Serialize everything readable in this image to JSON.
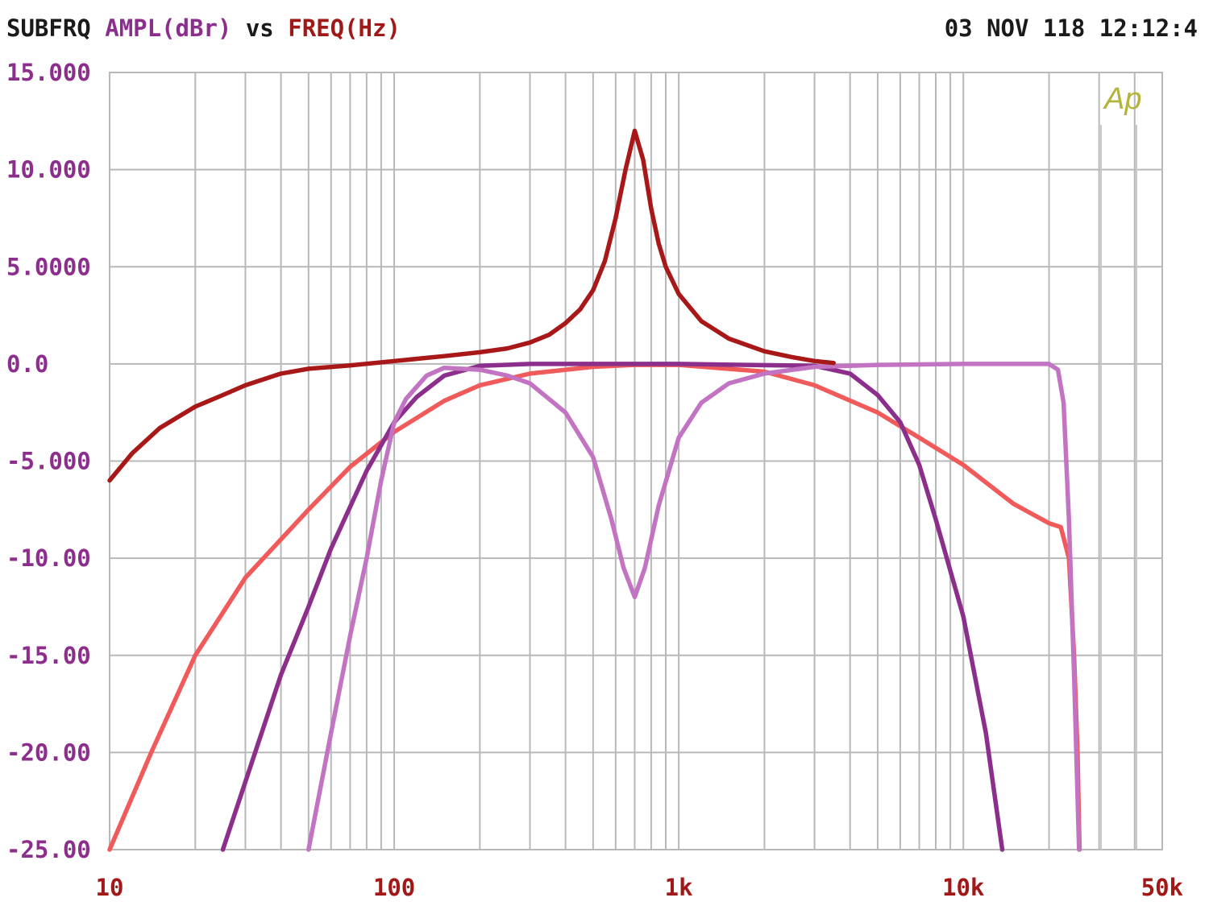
{
  "header": {
    "title": "SUBFRQ",
    "ylabel": "AMPL(dBr)",
    "vs": "vs",
    "xlabel": "FREQ(Hz)",
    "timestamp": "03 NOV 118 12:12:4"
  },
  "logo_text": "Ap",
  "colors": {
    "title": "#1a1a1a",
    "ylabel": "#8c2f8c",
    "xlabel": "#a01818",
    "grid": "#b8b8b8",
    "logo": "#b4b43c"
  },
  "chart_data": {
    "type": "line",
    "x_scale": "log",
    "xlim": [
      10,
      50000
    ],
    "ylim": [
      -25,
      15
    ],
    "grid": true,
    "title": "",
    "xlabel": "FREQ(Hz)",
    "ylabel": "AMPL(dBr)",
    "xtick_labels": [
      {
        "value": 10,
        "label": "10"
      },
      {
        "value": 100,
        "label": "100"
      },
      {
        "value": 1000,
        "label": "1k"
      },
      {
        "value": 10000,
        "label": "10k"
      },
      {
        "value": 50000,
        "label": "50k"
      }
    ],
    "ytick_labels": [
      {
        "value": 15,
        "label": "15.000"
      },
      {
        "value": 10,
        "label": "10.000"
      },
      {
        "value": 5,
        "label": "5.0000"
      },
      {
        "value": 0,
        "label": "0.0"
      },
      {
        "value": -5,
        "label": "-5.000"
      },
      {
        "value": -10,
        "label": "-10.00"
      },
      {
        "value": -15,
        "label": "-15.00"
      },
      {
        "value": -20,
        "label": "-20.00"
      },
      {
        "value": -25,
        "label": "-25.00"
      }
    ],
    "series": [
      {
        "color": "#f05a5a",
        "points": [
          [
            10,
            -25
          ],
          [
            14,
            -20
          ],
          [
            20,
            -15
          ],
          [
            30,
            -11
          ],
          [
            50,
            -7.5
          ],
          [
            70,
            -5.3
          ],
          [
            100,
            -3.5
          ],
          [
            150,
            -1.9
          ],
          [
            200,
            -1.1
          ],
          [
            300,
            -0.5
          ],
          [
            500,
            -0.15
          ],
          [
            700,
            -0.05
          ],
          [
            1000,
            -0.05
          ],
          [
            2000,
            -0.4
          ],
          [
            3000,
            -1.1
          ],
          [
            5000,
            -2.5
          ],
          [
            7000,
            -3.8
          ],
          [
            10000,
            -5.2
          ],
          [
            15000,
            -7.2
          ],
          [
            20000,
            -8.2
          ],
          [
            22000,
            -8.4
          ],
          [
            23500,
            -10
          ],
          [
            24500,
            -15
          ],
          [
            25200,
            -20
          ],
          [
            25600,
            -25
          ]
        ]
      },
      {
        "color": "#8c2f8c",
        "points": [
          [
            25,
            -25
          ],
          [
            30,
            -21.5
          ],
          [
            40,
            -16
          ],
          [
            50,
            -12.5
          ],
          [
            60,
            -9.5
          ],
          [
            80,
            -5.5
          ],
          [
            100,
            -3
          ],
          [
            120,
            -1.7
          ],
          [
            150,
            -0.6
          ],
          [
            200,
            -0.1
          ],
          [
            300,
            0
          ],
          [
            1000,
            0
          ],
          [
            3000,
            -0.1
          ],
          [
            4000,
            -0.5
          ],
          [
            5000,
            -1.6
          ],
          [
            6000,
            -3
          ],
          [
            7000,
            -5.2
          ],
          [
            8000,
            -8
          ],
          [
            10000,
            -13
          ],
          [
            12000,
            -19
          ],
          [
            13700,
            -25
          ]
        ]
      },
      {
        "color": "#c273c2",
        "points": [
          [
            50,
            -25
          ],
          [
            60,
            -19
          ],
          [
            70,
            -14
          ],
          [
            80,
            -10
          ],
          [
            90,
            -6
          ],
          [
            100,
            -3
          ],
          [
            110,
            -1.8
          ],
          [
            130,
            -0.6
          ],
          [
            150,
            -0.2
          ],
          [
            200,
            -0.3
          ],
          [
            250,
            -0.6
          ],
          [
            300,
            -1
          ],
          [
            400,
            -2.5
          ],
          [
            500,
            -4.8
          ],
          [
            580,
            -8
          ],
          [
            640,
            -10.5
          ],
          [
            700,
            -12
          ],
          [
            760,
            -10.5
          ],
          [
            850,
            -7.3
          ],
          [
            1000,
            -3.8
          ],
          [
            1200,
            -2
          ],
          [
            1500,
            -1
          ],
          [
            2000,
            -0.5
          ],
          [
            3000,
            -0.15
          ],
          [
            5000,
            -0.05
          ],
          [
            10000,
            0
          ],
          [
            20000,
            0
          ],
          [
            21500,
            -0.3
          ],
          [
            22500,
            -2
          ],
          [
            23500,
            -8
          ],
          [
            24500,
            -16
          ],
          [
            25500,
            -25
          ]
        ]
      },
      {
        "color": "#a81818",
        "points": [
          [
            10,
            -6
          ],
          [
            12,
            -4.6
          ],
          [
            15,
            -3.3
          ],
          [
            20,
            -2.2
          ],
          [
            25,
            -1.6
          ],
          [
            30,
            -1.1
          ],
          [
            40,
            -0.5
          ],
          [
            50,
            -0.25
          ],
          [
            70,
            -0.08
          ],
          [
            100,
            0.15
          ],
          [
            150,
            0.4
          ],
          [
            200,
            0.6
          ],
          [
            250,
            0.8
          ],
          [
            300,
            1.1
          ],
          [
            350,
            1.5
          ],
          [
            400,
            2.1
          ],
          [
            450,
            2.8
          ],
          [
            500,
            3.8
          ],
          [
            550,
            5.3
          ],
          [
            600,
            7.5
          ],
          [
            650,
            10
          ],
          [
            700,
            12
          ],
          [
            750,
            10.5
          ],
          [
            800,
            8
          ],
          [
            850,
            6.2
          ],
          [
            900,
            5
          ],
          [
            1000,
            3.6
          ],
          [
            1200,
            2.2
          ],
          [
            1500,
            1.3
          ],
          [
            2000,
            0.65
          ],
          [
            2500,
            0.35
          ],
          [
            3000,
            0.15
          ],
          [
            3500,
            0.05
          ]
        ]
      }
    ]
  }
}
